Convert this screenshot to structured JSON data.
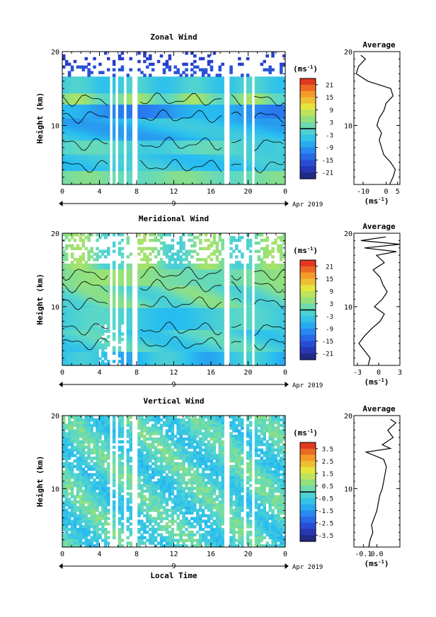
{
  "chart_data": [
    {
      "type": "heatmap",
      "id": "zonal",
      "title": "Zonal Wind",
      "ylabel": "Height (km)",
      "ylim": [
        2,
        20
      ],
      "yticks": [
        "10",
        "20"
      ],
      "xlim": [
        0,
        24
      ],
      "xticks": [
        "0",
        "4",
        "8",
        "12",
        "16",
        "20",
        "0"
      ],
      "date_label": "9",
      "date_suffix": "Apr 2019",
      "colorbar": {
        "unit": "(ms",
        "unit_exp": "-1",
        "unit_close": ")",
        "min": -24,
        "max": 24,
        "ticks": [
          "21",
          "15",
          "9",
          "3",
          "-3",
          "-9",
          "-15",
          "-21"
        ]
      },
      "profile": {
        "title": "Average",
        "xlabel": "(ms",
        "xlabel_exp": "-1",
        "xlabel_close": ")",
        "xlim": [
          -14,
          6
        ],
        "xticks": [
          "-10",
          "0",
          "5"
        ],
        "yticks": [
          "10",
          "20"
        ],
        "heights": [
          2,
          3,
          4,
          5,
          6,
          7,
          8,
          9,
          10,
          11,
          12,
          13,
          14,
          15,
          16,
          17,
          18,
          19,
          19.5
        ],
        "values": [
          1.5,
          3,
          4,
          2,
          -1,
          -2,
          -3,
          -2,
          -4,
          -3,
          -1,
          0,
          3,
          2,
          -8,
          -13,
          -12,
          -9,
          -11
        ]
      }
    },
    {
      "type": "heatmap",
      "id": "meridional",
      "title": "Meridional Wind",
      "ylabel": "Height (km)",
      "ylim": [
        2,
        20
      ],
      "yticks": [
        "10",
        "20"
      ],
      "xlim": [
        0,
        24
      ],
      "xticks": [
        "0",
        "4",
        "8",
        "12",
        "16",
        "20",
        "0"
      ],
      "date_label": "9",
      "date_suffix": "Apr 2019",
      "colorbar": {
        "unit": "(ms",
        "unit_exp": "-1",
        "unit_close": ")",
        "min": -24,
        "max": 24,
        "ticks": [
          "21",
          "15",
          "9",
          "3",
          "-3",
          "-9",
          "-15",
          "-21"
        ]
      },
      "profile": {
        "title": "Average",
        "xlabel": "(ms",
        "xlabel_exp": "-1",
        "xlabel_close": ")",
        "xlim": [
          -3.5,
          3
        ],
        "xticks": [
          "-3",
          "0",
          "3"
        ],
        "yticks": [
          "10",
          "20"
        ],
        "heights": [
          2,
          3,
          4,
          5,
          6,
          7,
          8,
          9,
          10,
          11,
          12,
          13,
          14,
          15,
          16,
          17,
          17.5,
          18,
          18.5,
          19,
          19.5
        ],
        "values": [
          -1.5,
          -1.2,
          -2,
          -2.8,
          -2,
          -1,
          0.2,
          0.8,
          -0.6,
          0.5,
          1.2,
          0.6,
          0.2,
          -0.8,
          0.8,
          -0.3,
          2.5,
          -2,
          3,
          -2.5,
          1
        ]
      }
    },
    {
      "type": "heatmap",
      "id": "vertical",
      "title": "Vertical Wind",
      "ylabel": "Height (km)",
      "xlabel": "Local Time",
      "ylim": [
        2,
        20
      ],
      "yticks": [
        "10",
        "20"
      ],
      "xlim": [
        0,
        24
      ],
      "xticks": [
        "0",
        "4",
        "8",
        "12",
        "16",
        "20",
        "0"
      ],
      "date_label": "9",
      "date_suffix": "Apr 2019",
      "colorbar": {
        "unit": "(ms",
        "unit_exp": "-1",
        "unit_close": ")",
        "min": -4,
        "max": 4,
        "ticks": [
          "3.5",
          "2.5",
          "1.5",
          "0.5",
          "-0.5",
          "-1.5",
          "-2.5",
          "-3.5"
        ]
      },
      "profile": {
        "title": "Average",
        "xlabel": "(ms",
        "xlabel_exp": "-1",
        "xlabel_close": ")",
        "xlim": [
          -0.17,
          0.17
        ],
        "xticks": [
          "-0.1",
          "0.0"
        ],
        "yticks": [
          "10",
          "20"
        ],
        "heights": [
          2,
          3,
          4,
          5,
          6,
          7,
          8,
          9,
          10,
          11,
          12,
          13,
          14,
          15,
          15.5,
          16,
          17,
          18,
          19,
          19.5
        ],
        "values": [
          -0.06,
          -0.05,
          -0.03,
          -0.04,
          -0.02,
          0.0,
          0.01,
          0.02,
          0.04,
          0.05,
          0.06,
          0.07,
          0.05,
          -0.08,
          0.1,
          0.04,
          0.12,
          0.08,
          0.14,
          0.1
        ]
      }
    }
  ]
}
